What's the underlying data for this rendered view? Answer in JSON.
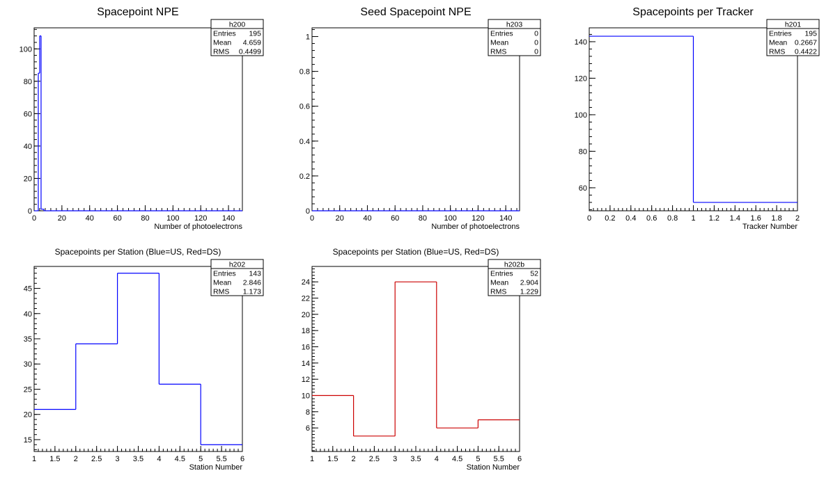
{
  "chart_data": [
    {
      "id": "h200",
      "type": "histogram",
      "title": "Spacepoint NPE",
      "xlabel": "Number of photoelectrons",
      "ylabel": "",
      "xlim": [
        0,
        150
      ],
      "ylim": [
        0,
        113
      ],
      "xticks": [
        "0",
        "20",
        "40",
        "60",
        "80",
        "100",
        "120",
        "140"
      ],
      "xtick_values": [
        0,
        20,
        40,
        60,
        80,
        100,
        120,
        140
      ],
      "yticks": [
        "0",
        "20",
        "40",
        "60",
        "80",
        "100"
      ],
      "ytick_values": [
        0,
        20,
        40,
        60,
        80,
        100
      ],
      "bin_edges": [
        0,
        1,
        2,
        3,
        4,
        5,
        6,
        7,
        8,
        9,
        150
      ],
      "values": [
        0,
        0,
        0,
        85,
        108,
        1,
        1,
        0,
        0,
        0
      ],
      "color": "#0000ff",
      "stats": {
        "name": "h200",
        "rows": [
          [
            "Entries",
            "195"
          ],
          [
            "Mean",
            "4.659"
          ],
          [
            "RMS",
            "0.4499"
          ]
        ]
      }
    },
    {
      "id": "h203",
      "type": "histogram",
      "title": "Seed Spacepoint NPE",
      "xlabel": "Number of photoelectrons",
      "ylabel": "",
      "xlim": [
        0,
        150
      ],
      "ylim": [
        0,
        1.05
      ],
      "xticks": [
        "0",
        "20",
        "40",
        "60",
        "80",
        "100",
        "120",
        "140"
      ],
      "xtick_values": [
        0,
        20,
        40,
        60,
        80,
        100,
        120,
        140
      ],
      "yticks": [
        "0",
        "0.2",
        "0.4",
        "0.6",
        "0.8",
        "1"
      ],
      "ytick_values": [
        0,
        0.2,
        0.4,
        0.6,
        0.8,
        1
      ],
      "bin_edges": [
        0,
        150
      ],
      "values": [
        0
      ],
      "color": "#0000ff",
      "stats": {
        "name": "h203",
        "rows": [
          [
            "Entries",
            "0"
          ],
          [
            "Mean",
            "0"
          ],
          [
            "RMS",
            "0"
          ]
        ]
      }
    },
    {
      "id": "h201",
      "type": "histogram",
      "title": "Spacepoints per Tracker",
      "xlabel": "Tracker Number",
      "ylabel": "",
      "xlim": [
        0,
        2
      ],
      "ylim": [
        47.4,
        147.6
      ],
      "xticks": [
        "0",
        "0.2",
        "0.4",
        "0.6",
        "0.8",
        "1",
        "1.2",
        "1.4",
        "1.6",
        "1.8",
        "2"
      ],
      "xtick_values": [
        0,
        0.2,
        0.4,
        0.6,
        0.8,
        1,
        1.2,
        1.4,
        1.6,
        1.8,
        2
      ],
      "yticks": [
        "60",
        "80",
        "100",
        "120",
        "140"
      ],
      "ytick_values": [
        60,
        80,
        100,
        120,
        140
      ],
      "bin_edges": [
        0,
        1,
        2
      ],
      "values": [
        143,
        52
      ],
      "color": "#0000ff",
      "stats": {
        "name": "h201",
        "rows": [
          [
            "Entries",
            "195"
          ],
          [
            "Mean",
            "0.2667"
          ],
          [
            "RMS",
            "0.4422"
          ]
        ]
      }
    },
    {
      "id": "h202",
      "type": "histogram",
      "title": "Spacepoints per Station (Blue=US, Red=DS)",
      "xlabel": "Station Number",
      "ylabel": "",
      "xlim": [
        1,
        6
      ],
      "ylim": [
        12.65,
        49.35
      ],
      "xticks": [
        "1",
        "1.5",
        "2",
        "2.5",
        "3",
        "3.5",
        "4",
        "4.5",
        "5",
        "5.5",
        "6"
      ],
      "xtick_values": [
        1,
        1.5,
        2,
        2.5,
        3,
        3.5,
        4,
        4.5,
        5,
        5.5,
        6
      ],
      "yticks": [
        "15",
        "20",
        "25",
        "30",
        "35",
        "40",
        "45"
      ],
      "ytick_values": [
        15,
        20,
        25,
        30,
        35,
        40,
        45
      ],
      "bin_edges": [
        1,
        2,
        3,
        4,
        5,
        6
      ],
      "values": [
        21,
        34,
        48,
        26,
        14
      ],
      "color": "#0000ff",
      "stats": {
        "name": "h202",
        "rows": [
          [
            "Entries",
            "143"
          ],
          [
            "Mean",
            "2.846"
          ],
          [
            "RMS",
            "1.173"
          ]
        ]
      }
    },
    {
      "id": "h202b",
      "type": "histogram",
      "title": "Spacepoints per Station (Blue=US, Red=DS)",
      "xlabel": "Station Number",
      "ylabel": "",
      "xlim": [
        1,
        6
      ],
      "ylim": [
        3.1,
        25.9
      ],
      "xticks": [
        "1",
        "1.5",
        "2",
        "2.5",
        "3",
        "3.5",
        "4",
        "4.5",
        "5",
        "5.5",
        "6"
      ],
      "xtick_values": [
        1,
        1.5,
        2,
        2.5,
        3,
        3.5,
        4,
        4.5,
        5,
        5.5,
        6
      ],
      "yticks": [
        "6",
        "8",
        "10",
        "12",
        "14",
        "16",
        "18",
        "20",
        "22",
        "24"
      ],
      "ytick_values": [
        6,
        8,
        10,
        12,
        14,
        16,
        18,
        20,
        22,
        24
      ],
      "bin_edges": [
        1,
        2,
        3,
        4,
        5,
        6
      ],
      "values": [
        10,
        5,
        24,
        6,
        7
      ],
      "color": "#cc0000",
      "stats": {
        "name": "h202b",
        "rows": [
          [
            "Entries",
            "52"
          ],
          [
            "Mean",
            "2.904"
          ],
          [
            "RMS",
            "1.229"
          ]
        ]
      }
    }
  ]
}
